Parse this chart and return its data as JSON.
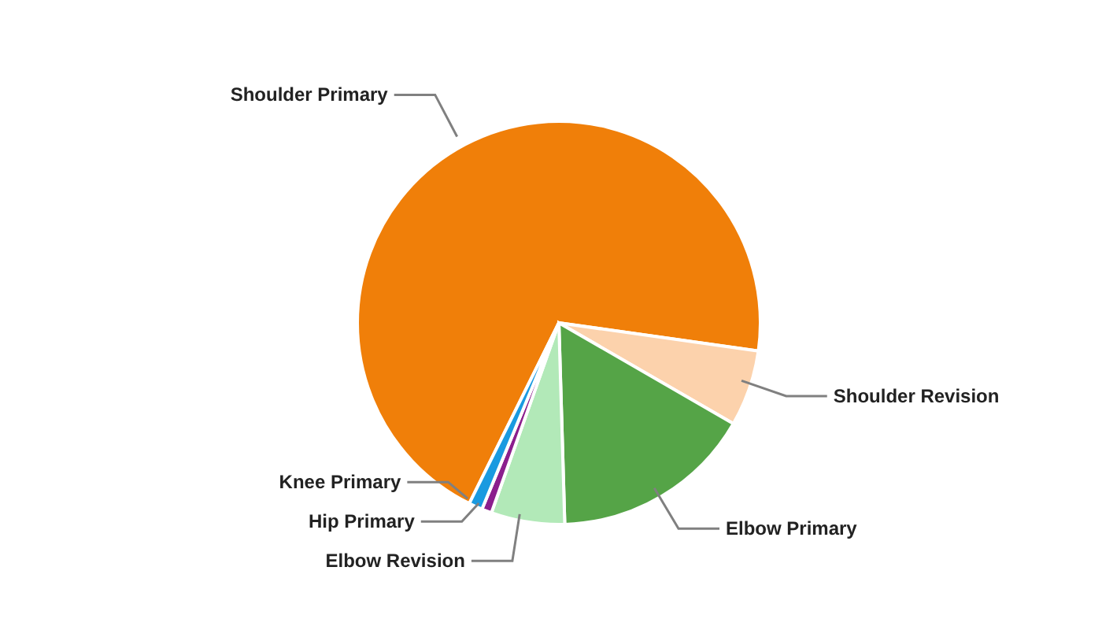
{
  "chart_data": {
    "type": "pie",
    "categories": [
      "Shoulder Primary",
      "Shoulder Revision",
      "Elbow Primary",
      "Elbow Revision",
      "Hip Primary",
      "Knee Primary"
    ],
    "values": [
      69.9,
      6.1,
      16.2,
      5.9,
      0.8,
      1.1
    ],
    "colors": [
      "#f07f09",
      "#fcd2ac",
      "#55a447",
      "#b2e9b8",
      "#8b1f8d",
      "#1a9ae0"
    ],
    "legend": false
  }
}
